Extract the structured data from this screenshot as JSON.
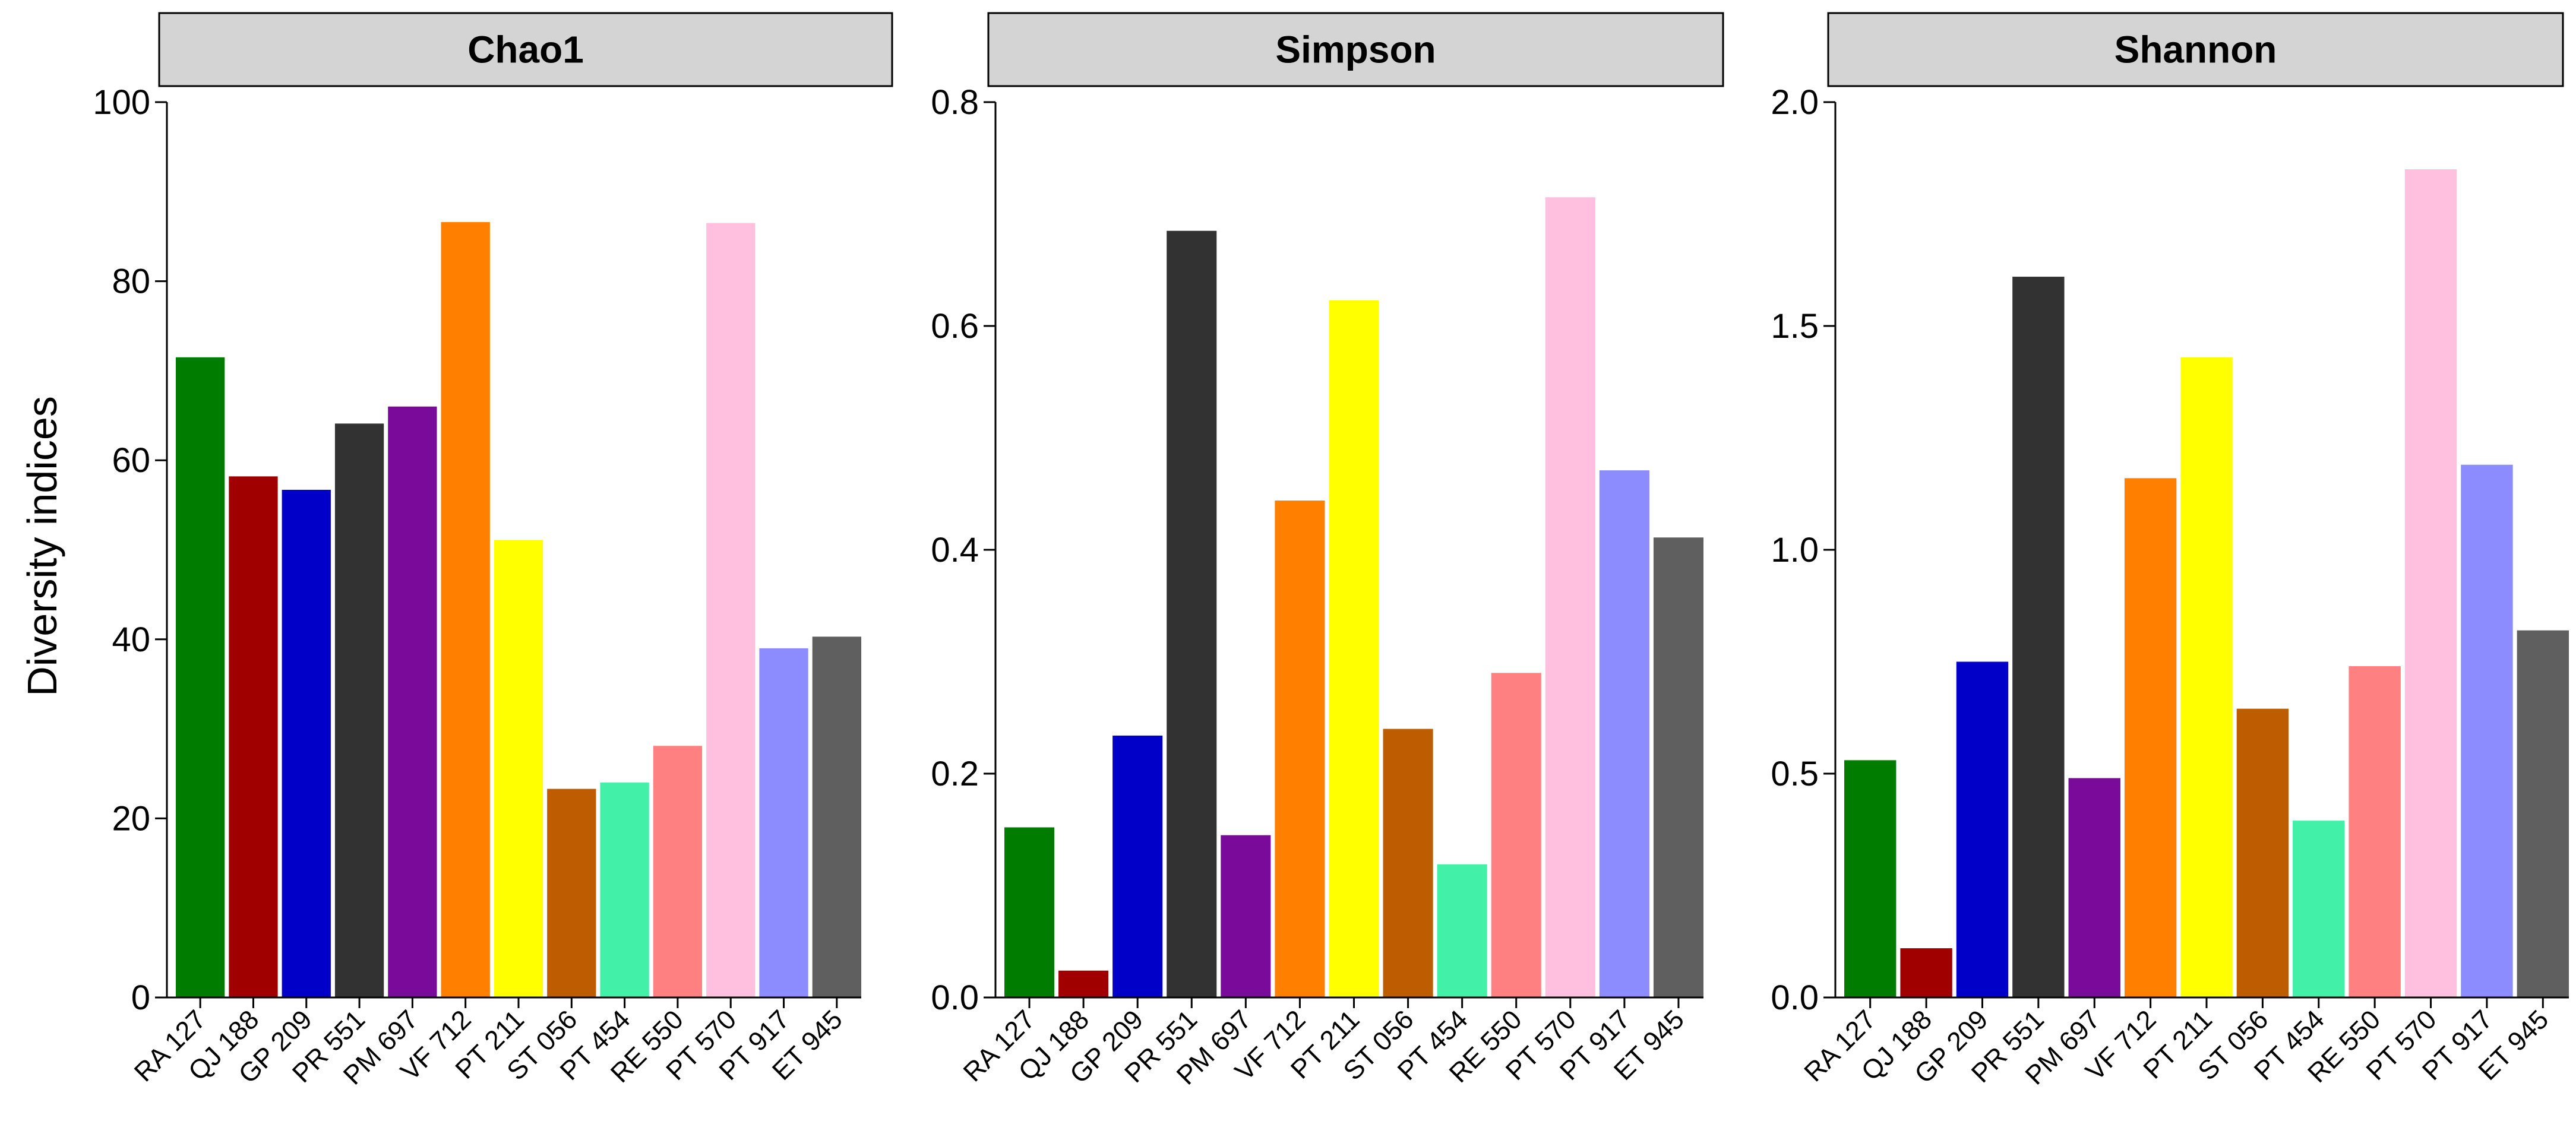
{
  "figure": {
    "ylabel": "Diversity indices"
  },
  "chart_data": [
    {
      "type": "bar",
      "title": "Chao1",
      "xlabel": "",
      "ylabel": "Diversity indices",
      "ylim": [
        0,
        100
      ],
      "yticks": [
        "0",
        "20",
        "40",
        "60",
        "80",
        "100"
      ],
      "ytick_values": [
        0,
        20,
        40,
        60,
        80,
        100
      ],
      "categories": [
        "RA 127",
        "QJ 188",
        "GP 209",
        "PR 551",
        "PM 697",
        "VF 712",
        "PT 211",
        "ST 056",
        "PT 454",
        "RE 550",
        "PT 570",
        "PT 917",
        "ET 945"
      ],
      "values": [
        71.5,
        58.2,
        56.7,
        64.1,
        66.0,
        86.6,
        51.1,
        23.3,
        24.0,
        28.1,
        86.5,
        39.0,
        40.3
      ]
    },
    {
      "type": "bar",
      "title": "Simpson",
      "xlabel": "",
      "ylabel": "",
      "ylim": [
        0,
        0.8
      ],
      "yticks": [
        "0.0",
        "0.2",
        "0.4",
        "0.6",
        "0.8"
      ],
      "ytick_values": [
        0,
        0.2,
        0.4,
        0.6,
        0.8
      ],
      "categories": [
        "RA 127",
        "QJ 188",
        "GP 209",
        "PR 551",
        "PM 697",
        "VF 712",
        "PT 211",
        "ST 056",
        "PT 454",
        "RE 550",
        "PT 570",
        "PT 917",
        "ET 945"
      ],
      "values": [
        0.152,
        0.024,
        0.234,
        0.685,
        0.145,
        0.444,
        0.623,
        0.24,
        0.119,
        0.29,
        0.715,
        0.471,
        0.411
      ]
    },
    {
      "type": "bar",
      "title": "Shannon",
      "xlabel": "",
      "ylabel": "",
      "ylim": [
        0,
        2.0
      ],
      "yticks": [
        "0.0",
        "0.5",
        "1.0",
        "1.5",
        "2.0"
      ],
      "ytick_values": [
        0,
        0.5,
        1.0,
        1.5,
        2.0
      ],
      "categories": [
        "RA 127",
        "QJ 188",
        "GP 209",
        "PR 551",
        "PM 697",
        "VF 712",
        "PT 211",
        "ST 056",
        "PT 454",
        "RE 550",
        "PT 570",
        "PT 917",
        "ET 945"
      ],
      "values": [
        0.53,
        0.11,
        0.75,
        1.61,
        0.49,
        1.16,
        1.43,
        0.645,
        0.395,
        0.74,
        1.85,
        1.19,
        0.82
      ]
    }
  ],
  "colors": {
    "RA 127": "#007d00",
    "QJ 188": "#a10000",
    "GP 209": "#0000c8",
    "PR 551": "#323232",
    "PM 697": "#7a0a9a",
    "VF 712": "#ff7f00",
    "PT 211": "#ffff00",
    "ST 056": "#bd5c00",
    "PT 454": "#42f0a8",
    "RE 550": "#ff8080",
    "PT 570": "#ffbfdf",
    "PT 917": "#8c8cff",
    "ET 945": "#5f5f5f"
  }
}
